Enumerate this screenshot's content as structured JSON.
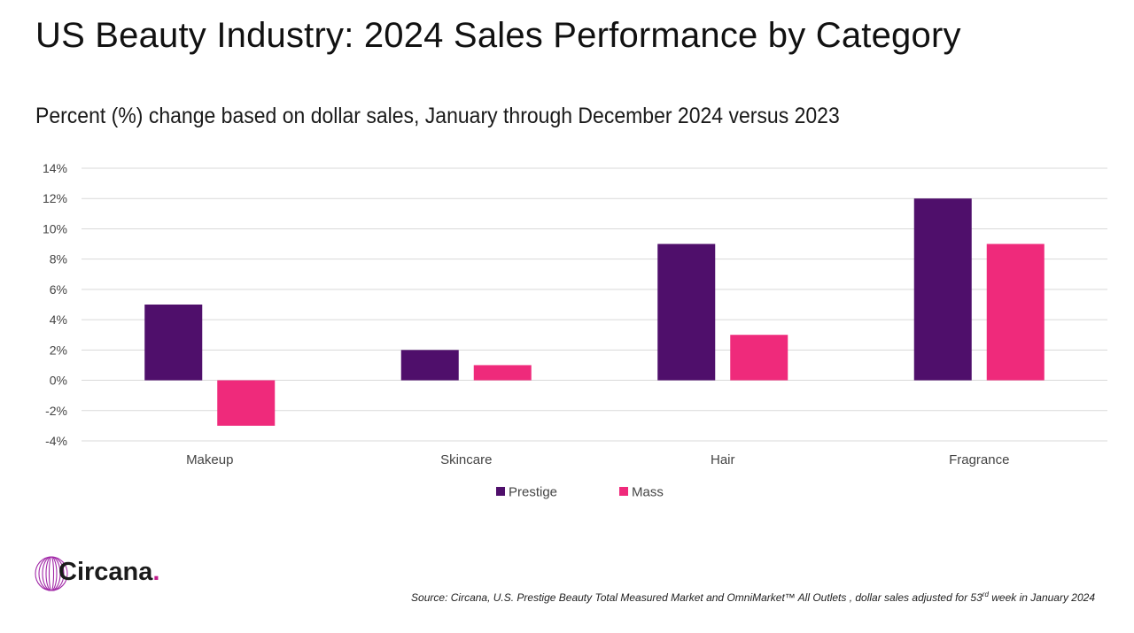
{
  "title": "US Beauty Industry: 2024 Sales Performance by Category",
  "subtitle": "Percent (%) change based on dollar sales, January through December 2024 versus 2023",
  "logo": {
    "name": "Circana",
    "dot": ".",
    "icon": "circana-globe-icon"
  },
  "source": {
    "text_before": "Source: Circana, U.S. Prestige Beauty Total Measured Market and OmniMarket™ All Outlets , dollar sales adjusted for 53",
    "superscript": "rd",
    "text_after": " week in January 2024"
  },
  "chart_data": {
    "type": "bar",
    "title": "",
    "xlabel": "",
    "ylabel": "",
    "categories": [
      "Makeup",
      "Skincare",
      "Hair",
      "Fragrance"
    ],
    "series": [
      {
        "name": "Prestige",
        "color": "#4f0f6b",
        "values": [
          5,
          2,
          9,
          12
        ]
      },
      {
        "name": "Mass",
        "color": "#ef2a7b",
        "values": [
          -3,
          1,
          3,
          9
        ]
      }
    ],
    "ylim": [
      -4,
      14
    ],
    "yticks": [
      -4,
      -2,
      0,
      2,
      4,
      6,
      8,
      10,
      12,
      14
    ],
    "ytick_labels": [
      "-4%",
      "-2%",
      "0%",
      "2%",
      "4%",
      "6%",
      "8%",
      "10%",
      "12%",
      "14%"
    ],
    "grid": true,
    "legend_position": "bottom-center",
    "gridline_color": "#d9d9d9"
  }
}
